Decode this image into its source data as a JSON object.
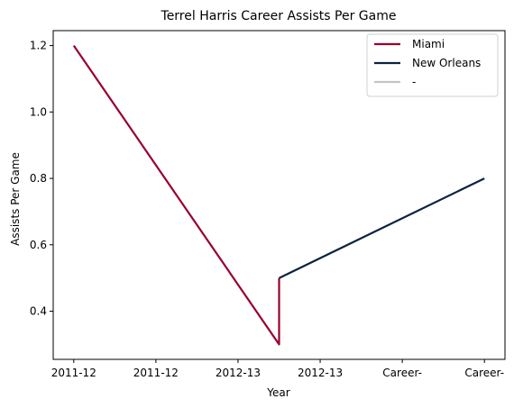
{
  "chart_data": {
    "type": "line",
    "title": "Terrel Harris Career Assists Per Game",
    "xlabel": "Year",
    "ylabel": "Assists Per Game",
    "x_tick_labels": [
      "2011-12",
      "2011-12",
      "2012-13",
      "2012-13",
      "Career-",
      "Career-"
    ],
    "y_ticks": [
      0.4,
      0.6,
      0.8,
      1.0,
      1.2
    ],
    "y_tick_labels": [
      "0.4",
      "0.6",
      "0.8",
      "1.0",
      "1.2"
    ],
    "xlim": [
      -0.25,
      5.25
    ],
    "ylim": [
      0.255,
      1.245
    ],
    "grid": false,
    "legend_position": "top-right",
    "series": [
      {
        "name": "Miami",
        "color": "#98002E",
        "x": [
          0,
          2.5,
          2.5
        ],
        "values": [
          1.2,
          0.3,
          0.5
        ]
      },
      {
        "name": "New Orleans",
        "color": "#0C2340",
        "x": [
          2.5,
          5
        ],
        "values": [
          0.5,
          0.8
        ]
      },
      {
        "name": "-",
        "color": "#C4C4C4",
        "x": [],
        "values": []
      }
    ]
  }
}
